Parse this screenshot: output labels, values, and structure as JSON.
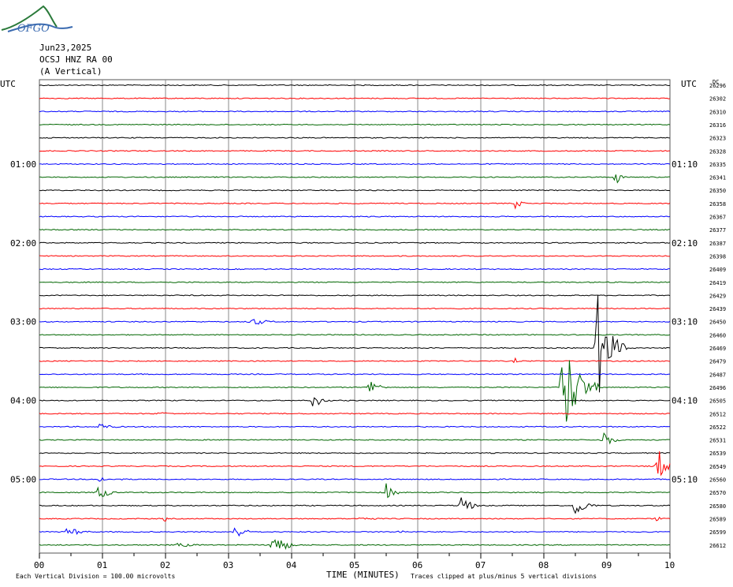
{
  "logo": {
    "text": "OFGO"
  },
  "header": {
    "date": "Jun23,2025",
    "station": "OCSJ HNZ RA 00",
    "component": "(A Vertical)"
  },
  "axis": {
    "left_label": "UTC",
    "right_label": "UTC",
    "dc_label": "DC",
    "xlabel": "TIME (MINUTES)",
    "xticks": [
      "00",
      "01",
      "02",
      "03",
      "04",
      "05",
      "06",
      "07",
      "08",
      "09",
      "10"
    ],
    "left_times": [
      "01:00",
      "02:00",
      "03:00",
      "04:00",
      "05:00"
    ],
    "right_times": [
      "01:10",
      "02:10",
      "03:10",
      "04:10",
      "05:10"
    ]
  },
  "footer": {
    "scale_note": "Each Vertical Division =  100.00 microvolts",
    "clip_note": "Traces clipped at plus/minus 5 vertical divisions"
  },
  "colors": {
    "black": "#000000",
    "red": "#ff0000",
    "blue": "#0000ff",
    "green": "#006600"
  },
  "chart_data": {
    "type": "line",
    "title": "",
    "xlabel": "TIME (MINUTES)",
    "xlim": [
      0,
      10
    ],
    "traces": [
      {
        "dc": "26296",
        "color": "black"
      },
      {
        "dc": "26302",
        "color": "red"
      },
      {
        "dc": "26310",
        "color": "blue"
      },
      {
        "dc": "26316",
        "color": "green"
      },
      {
        "dc": "26323",
        "color": "black"
      },
      {
        "dc": "26328",
        "color": "red"
      },
      {
        "dc": "26335",
        "color": "blue"
      },
      {
        "dc": "26341",
        "color": "green",
        "events": [
          {
            "t": 9.15,
            "amp": 10,
            "dur": 0.2
          }
        ]
      },
      {
        "dc": "26350",
        "color": "black"
      },
      {
        "dc": "26358",
        "color": "red",
        "events": [
          {
            "t": 7.55,
            "amp": 7,
            "dur": 0.25
          }
        ]
      },
      {
        "dc": "26367",
        "color": "blue"
      },
      {
        "dc": "26377",
        "color": "green"
      },
      {
        "dc": "26387",
        "color": "black"
      },
      {
        "dc": "26398",
        "color": "red"
      },
      {
        "dc": "26409",
        "color": "blue"
      },
      {
        "dc": "26419",
        "color": "green"
      },
      {
        "dc": "26429",
        "color": "black"
      },
      {
        "dc": "26439",
        "color": "red"
      },
      {
        "dc": "26450",
        "color": "blue",
        "events": [
          {
            "t": 3.35,
            "amp": 6,
            "dur": 0.6
          }
        ]
      },
      {
        "dc": "26460",
        "color": "green"
      },
      {
        "dc": "26469",
        "color": "black",
        "events": [
          {
            "t": 8.85,
            "amp": 70,
            "dur": 0.5
          }
        ]
      },
      {
        "dc": "26479",
        "color": "red",
        "events": [
          {
            "t": 7.55,
            "amp": 4,
            "dur": 0.1
          }
        ]
      },
      {
        "dc": "26487",
        "color": "blue"
      },
      {
        "dc": "26496",
        "color": "green",
        "events": [
          {
            "t": 5.25,
            "amp": 14,
            "dur": 0.3
          },
          {
            "t": 8.3,
            "amp": 75,
            "dur": 0.6
          }
        ]
      },
      {
        "dc": "26505",
        "color": "black",
        "events": [
          {
            "t": 4.35,
            "amp": 12,
            "dur": 0.3
          }
        ]
      },
      {
        "dc": "26512",
        "color": "red",
        "events": [
          {
            "t": 1.9,
            "amp": 3,
            "dur": 0.4
          }
        ]
      },
      {
        "dc": "26522",
        "color": "blue",
        "events": [
          {
            "t": 0.95,
            "amp": 5,
            "dur": 0.5
          }
        ]
      },
      {
        "dc": "26531",
        "color": "green",
        "events": [
          {
            "t": 8.95,
            "amp": 14,
            "dur": 0.3
          }
        ]
      },
      {
        "dc": "26539",
        "color": "black"
      },
      {
        "dc": "26549",
        "color": "red",
        "events": [
          {
            "t": 9.8,
            "amp": 28,
            "dur": 0.3
          }
        ]
      },
      {
        "dc": "26560",
        "color": "blue",
        "events": [
          {
            "t": 0.95,
            "amp": 6,
            "dur": 0.2
          },
          {
            "t": 1.3,
            "amp": 4,
            "dur": 0.1
          }
        ]
      },
      {
        "dc": "26570",
        "color": "green",
        "events": [
          {
            "t": 0.95,
            "amp": 14,
            "dur": 0.3
          },
          {
            "t": 5.5,
            "amp": 12,
            "dur": 0.3
          }
        ]
      },
      {
        "dc": "26580",
        "color": "black",
        "events": [
          {
            "t": 6.7,
            "amp": 18,
            "dur": 0.3
          },
          {
            "t": 8.5,
            "amp": 16,
            "dur": 0.4
          }
        ]
      },
      {
        "dc": "26589",
        "color": "red",
        "events": [
          {
            "t": 2.0,
            "amp": 5,
            "dur": 0.1
          },
          {
            "t": 5.1,
            "amp": 3,
            "dur": 0.6
          },
          {
            "t": 9.8,
            "amp": 5,
            "dur": 0.2
          }
        ]
      },
      {
        "dc": "26599",
        "color": "blue",
        "events": [
          {
            "t": 0.45,
            "amp": 7,
            "dur": 0.5
          },
          {
            "t": 3.1,
            "amp": 10,
            "dur": 0.4
          },
          {
            "t": 5.7,
            "amp": 3,
            "dur": 0.3
          }
        ]
      },
      {
        "dc": "26612",
        "color": "green",
        "events": [
          {
            "t": 3.7,
            "amp": 24,
            "dur": 0.4
          },
          {
            "t": 2.2,
            "amp": 3,
            "dur": 0.8
          }
        ]
      }
    ]
  }
}
